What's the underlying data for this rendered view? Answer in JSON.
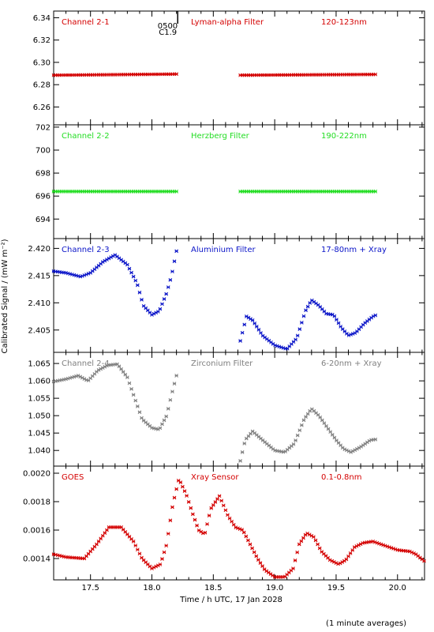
{
  "footer_note": "(1 minute averages)",
  "shared": {
    "xlabel": "Time / h UTC, 17 Jan 2028",
    "ylabel": "Calibrated Signal / (mW m⁻²)",
    "xlim": [
      17.2,
      20.22
    ],
    "xticks": [
      17.5,
      18.0,
      18.5,
      19.0,
      19.5,
      20.0
    ],
    "xtick_labels": [
      "17.5",
      "18.0",
      "18.5",
      "19.0",
      "19.5",
      "20.0"
    ]
  },
  "marker": {
    "labels": [
      "0500",
      "C1.9"
    ],
    "x": 18.21
  },
  "chart_data": [
    {
      "type": "scatter",
      "labels": [
        "Channel 2-1",
        "Lyman-alpha Filter",
        "120-123nm"
      ],
      "color": "#d40000",
      "ylim": [
        6.244,
        6.346
      ],
      "yticks": [
        6.26,
        6.28,
        6.3,
        6.32,
        6.34
      ],
      "ytick_labels": [
        "6.26",
        "6.28",
        "6.30",
        "6.32",
        "6.34"
      ],
      "segments": [
        [
          [
            17.2,
            6.2885
          ],
          [
            18.2,
            6.2895
          ]
        ],
        [
          [
            18.72,
            6.2885
          ],
          [
            19.83,
            6.2892
          ]
        ]
      ]
    },
    {
      "type": "scatter",
      "labels": [
        "Channel 2-2",
        "Herzberg Filter",
        "190-222nm"
      ],
      "color": "#22dd22",
      "ylim": [
        692.3,
        702.2
      ],
      "yticks": [
        694,
        696,
        698,
        700,
        702
      ],
      "ytick_labels": [
        "694",
        "696",
        "698",
        "700",
        "702"
      ],
      "segments": [
        [
          [
            17.2,
            696.4
          ],
          [
            18.2,
            696.4
          ]
        ],
        [
          [
            18.72,
            696.4
          ],
          [
            19.83,
            696.4
          ]
        ]
      ]
    },
    {
      "type": "scatter",
      "labels": [
        "Channel 2-3",
        "Aluminium Filter",
        "17-80nm + Xray"
      ],
      "color": "#0a14c8",
      "ylim": [
        2.4009,
        2.4218
      ],
      "yticks": [
        2.405,
        2.41,
        2.415,
        2.42
      ],
      "ytick_labels": [
        "2.405",
        "2.410",
        "2.415",
        "2.420"
      ],
      "segments": [
        [
          [
            17.2,
            2.4158
          ],
          [
            17.3,
            2.4155
          ],
          [
            17.42,
            2.4148
          ],
          [
            17.5,
            2.4155
          ],
          [
            17.6,
            2.4175
          ],
          [
            17.7,
            2.4188
          ],
          [
            17.8,
            2.417
          ],
          [
            17.88,
            2.4135
          ],
          [
            17.93,
            2.4095
          ],
          [
            18.0,
            2.4078
          ],
          [
            18.06,
            2.4085
          ],
          [
            18.12,
            2.4118
          ],
          [
            18.16,
            2.415
          ],
          [
            18.2,
            2.4195
          ]
        ],
        [
          [
            18.72,
            2.403
          ],
          [
            18.77,
            2.4075
          ],
          [
            18.82,
            2.4068
          ],
          [
            18.9,
            2.404
          ],
          [
            19.0,
            2.4022
          ],
          [
            19.1,
            2.4015
          ],
          [
            19.18,
            2.4035
          ],
          [
            19.25,
            2.4085
          ],
          [
            19.3,
            2.4105
          ],
          [
            19.36,
            2.4095
          ],
          [
            19.42,
            2.408
          ],
          [
            19.48,
            2.4078
          ],
          [
            19.54,
            2.4055
          ],
          [
            19.6,
            2.404
          ],
          [
            19.66,
            2.4045
          ],
          [
            19.73,
            2.4062
          ],
          [
            19.8,
            2.4075
          ],
          [
            19.83,
            2.4078
          ]
        ]
      ]
    },
    {
      "type": "scatter",
      "labels": [
        "Channel 2-4",
        "Zirconium Filter",
        "6-20nm + Xray"
      ],
      "color": "#7f7f7f",
      "ylim": [
        1.0355,
        1.0682
      ],
      "yticks": [
        1.04,
        1.045,
        1.05,
        1.055,
        1.06,
        1.065
      ],
      "ytick_labels": [
        "1.040",
        "1.045",
        "1.050",
        "1.055",
        "1.060",
        "1.065"
      ],
      "segments": [
        [
          [
            17.2,
            1.0598
          ],
          [
            17.3,
            1.0605
          ],
          [
            17.4,
            1.0615
          ],
          [
            17.48,
            1.06
          ],
          [
            17.56,
            1.063
          ],
          [
            17.64,
            1.0645
          ],
          [
            17.72,
            1.0648
          ],
          [
            17.8,
            1.061
          ],
          [
            17.86,
            1.055
          ],
          [
            17.92,
            1.049
          ],
          [
            18.0,
            1.0465
          ],
          [
            18.06,
            1.046
          ],
          [
            18.12,
            1.05
          ],
          [
            18.16,
            1.056
          ],
          [
            18.2,
            1.0615
          ]
        ],
        [
          [
            18.72,
            1.037
          ],
          [
            18.76,
            1.043
          ],
          [
            18.82,
            1.0455
          ],
          [
            18.9,
            1.043
          ],
          [
            19.0,
            1.04
          ],
          [
            19.08,
            1.0395
          ],
          [
            19.16,
            1.042
          ],
          [
            19.24,
            1.049
          ],
          [
            19.3,
            1.052
          ],
          [
            19.36,
            1.05
          ],
          [
            19.44,
            1.046
          ],
          [
            19.5,
            1.043
          ],
          [
            19.56,
            1.0405
          ],
          [
            19.62,
            1.0395
          ],
          [
            19.7,
            1.041
          ],
          [
            19.78,
            1.043
          ],
          [
            19.83,
            1.0432
          ]
        ]
      ]
    },
    {
      "type": "scatter",
      "labels": [
        "GOES",
        "Xray Sensor",
        "0.1-0.8nm"
      ],
      "color": "#d40000",
      "ylim": [
        0.00125,
        0.00205
      ],
      "yticks": [
        0.0014,
        0.0016,
        0.0018,
        0.002
      ],
      "ytick_labels": [
        "0.0014",
        "0.0016",
        "0.0018",
        "0.0020"
      ],
      "segments": [
        [
          [
            17.2,
            0.00143
          ],
          [
            17.3,
            0.00141
          ],
          [
            17.45,
            0.0014
          ],
          [
            17.55,
            0.0015
          ],
          [
            17.65,
            0.00162
          ],
          [
            17.75,
            0.00162
          ],
          [
            17.85,
            0.00152
          ],
          [
            17.92,
            0.0014
          ],
          [
            18.0,
            0.00133
          ],
          [
            18.07,
            0.00136
          ],
          [
            18.12,
            0.0015
          ],
          [
            18.17,
            0.00178
          ],
          [
            18.22,
            0.00196
          ],
          [
            18.28,
            0.00185
          ],
          [
            18.33,
            0.00172
          ],
          [
            18.38,
            0.0016
          ],
          [
            18.43,
            0.00157
          ],
          [
            18.48,
            0.00175
          ],
          [
            18.55,
            0.00184
          ],
          [
            18.62,
            0.0017
          ],
          [
            18.68,
            0.00162
          ],
          [
            18.74,
            0.0016
          ],
          [
            18.8,
            0.0015
          ],
          [
            18.86,
            0.0014
          ],
          [
            18.92,
            0.00132
          ],
          [
            19.0,
            0.00127
          ],
          [
            19.08,
            0.00127
          ],
          [
            19.15,
            0.00133
          ],
          [
            19.2,
            0.0015
          ],
          [
            19.26,
            0.00158
          ],
          [
            19.32,
            0.00155
          ],
          [
            19.38,
            0.00145
          ],
          [
            19.45,
            0.00139
          ],
          [
            19.52,
            0.00136
          ],
          [
            19.58,
            0.00139
          ],
          [
            19.65,
            0.00148
          ],
          [
            19.72,
            0.00151
          ],
          [
            19.8,
            0.00152
          ],
          [
            19.9,
            0.00149
          ],
          [
            20.0,
            0.00146
          ],
          [
            20.1,
            0.00145
          ],
          [
            20.15,
            0.00143
          ],
          [
            20.22,
            0.00138
          ]
        ]
      ]
    }
  ]
}
